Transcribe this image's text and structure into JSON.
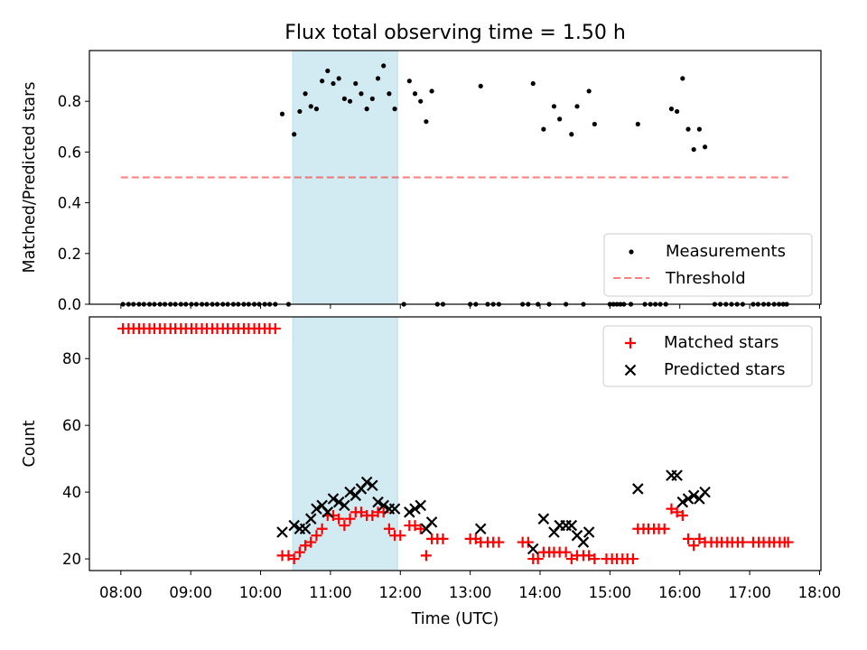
{
  "figure": {
    "title": "Flux total observing time = 1.50 h",
    "xlabel": "Time (UTC)",
    "x_ticks": [
      "08:00",
      "09:00",
      "10:00",
      "11:00",
      "12:00",
      "13:00",
      "14:00",
      "15:00",
      "16:00",
      "17:00",
      "18:00"
    ],
    "shaded_span_hours": [
      10.46,
      11.96
    ],
    "shade_color": "#add8e6"
  },
  "chart_data": [
    {
      "type": "scatter",
      "ylabel": "Matched/Predicted stars",
      "ylim": [
        0,
        1.0
      ],
      "yticks": [
        0.0,
        0.2,
        0.4,
        0.6,
        0.8
      ],
      "ytick_labels": [
        "0.0",
        "0.2",
        "0.4",
        "0.6",
        "0.8"
      ],
      "xlim_hours": [
        7.55,
        18.02
      ],
      "legend": {
        "placement": "lower right",
        "items": [
          "Measurements",
          "Threshold"
        ]
      },
      "threshold": {
        "name": "Threshold",
        "value": 0.5,
        "x_hours": [
          8.0,
          17.55
        ],
        "color": "#ff0000",
        "alpha": 0.5
      },
      "series": [
        {
          "name": "Measurements",
          "color": "#000000",
          "points": [
            [
              8.03,
              0
            ],
            [
              8.11,
              0
            ],
            [
              8.18,
              0
            ],
            [
              8.26,
              0
            ],
            [
              8.33,
              0
            ],
            [
              8.41,
              0
            ],
            [
              8.48,
              0
            ],
            [
              8.56,
              0
            ],
            [
              8.63,
              0
            ],
            [
              8.71,
              0
            ],
            [
              8.78,
              0
            ],
            [
              8.86,
              0
            ],
            [
              8.93,
              0
            ],
            [
              9.01,
              0
            ],
            [
              9.08,
              0
            ],
            [
              9.16,
              0
            ],
            [
              9.23,
              0
            ],
            [
              9.31,
              0
            ],
            [
              9.38,
              0
            ],
            [
              9.46,
              0
            ],
            [
              9.53,
              0
            ],
            [
              9.61,
              0
            ],
            [
              9.68,
              0
            ],
            [
              9.76,
              0
            ],
            [
              9.83,
              0
            ],
            [
              9.91,
              0
            ],
            [
              9.98,
              0
            ],
            [
              10.06,
              0
            ],
            [
              10.13,
              0
            ],
            [
              10.21,
              0
            ],
            [
              10.31,
              0.75
            ],
            [
              10.4,
              0
            ],
            [
              10.48,
              0.67
            ],
            [
              10.56,
              0.76
            ],
            [
              10.64,
              0.83
            ],
            [
              10.72,
              0.78
            ],
            [
              10.8,
              0.77
            ],
            [
              10.88,
              0.88
            ],
            [
              10.96,
              0.92
            ],
            [
              11.04,
              0.87
            ],
            [
              11.12,
              0.89
            ],
            [
              11.2,
              0.81
            ],
            [
              11.28,
              0.8
            ],
            [
              11.36,
              0.87
            ],
            [
              11.44,
              0.83
            ],
            [
              11.52,
              0.77
            ],
            [
              11.6,
              0.81
            ],
            [
              11.68,
              0.89
            ],
            [
              11.76,
              0.94
            ],
            [
              11.84,
              0.83
            ],
            [
              11.92,
              0.77
            ],
            [
              12.05,
              0
            ],
            [
              12.13,
              0.88
            ],
            [
              12.21,
              0.83
            ],
            [
              12.29,
              0.8
            ],
            [
              12.37,
              0.72
            ],
            [
              12.45,
              0.84
            ],
            [
              12.53,
              0
            ],
            [
              12.61,
              0
            ],
            [
              13.0,
              0
            ],
            [
              13.08,
              0
            ],
            [
              13.15,
              0.86
            ],
            [
              13.25,
              0
            ],
            [
              13.33,
              0
            ],
            [
              13.41,
              0
            ],
            [
              13.75,
              0
            ],
            [
              13.83,
              0
            ],
            [
              13.9,
              0.87
            ],
            [
              13.97,
              0
            ],
            [
              14.05,
              0.69
            ],
            [
              14.13,
              0
            ],
            [
              14.2,
              0.78
            ],
            [
              14.28,
              0.73
            ],
            [
              14.37,
              0
            ],
            [
              14.45,
              0.67
            ],
            [
              14.53,
              0.78
            ],
            [
              14.62,
              0
            ],
            [
              14.7,
              0.84
            ],
            [
              14.78,
              0.71
            ],
            [
              15.0,
              0
            ],
            [
              15.05,
              0
            ],
            [
              15.1,
              0
            ],
            [
              15.15,
              0
            ],
            [
              15.2,
              0
            ],
            [
              15.3,
              0
            ],
            [
              15.4,
              0.71
            ],
            [
              15.5,
              0
            ],
            [
              15.58,
              0
            ],
            [
              15.65,
              0
            ],
            [
              15.72,
              0
            ],
            [
              15.8,
              0
            ],
            [
              15.88,
              0.77
            ],
            [
              15.96,
              0.76
            ],
            [
              16.04,
              0.89
            ],
            [
              16.12,
              0.69
            ],
            [
              16.2,
              0.61
            ],
            [
              16.28,
              0.69
            ],
            [
              16.36,
              0.62
            ],
            [
              16.5,
              0
            ],
            [
              16.58,
              0
            ],
            [
              16.66,
              0
            ],
            [
              16.74,
              0
            ],
            [
              16.82,
              0
            ],
            [
              16.9,
              0
            ],
            [
              17.05,
              0
            ],
            [
              17.12,
              0
            ],
            [
              17.2,
              0
            ],
            [
              17.27,
              0
            ],
            [
              17.35,
              0
            ],
            [
              17.42,
              0
            ],
            [
              17.48,
              0
            ],
            [
              17.53,
              0
            ]
          ]
        }
      ]
    },
    {
      "type": "scatter",
      "ylabel": "Count",
      "ylim": [
        16.5,
        92.5
      ],
      "yticks": [
        20,
        40,
        60,
        80
      ],
      "ytick_labels": [
        "20",
        "40",
        "60",
        "80"
      ],
      "xlim_hours": [
        7.55,
        18.02
      ],
      "legend": {
        "placement": "upper right",
        "items": [
          "Matched stars",
          "Predicted stars"
        ]
      },
      "series": [
        {
          "name": "Matched stars",
          "color": "#ff0000",
          "marker": "plus",
          "points": [
            [
              8.03,
              89
            ],
            [
              8.11,
              89
            ],
            [
              8.18,
              89
            ],
            [
              8.26,
              89
            ],
            [
              8.33,
              89
            ],
            [
              8.41,
              89
            ],
            [
              8.48,
              89
            ],
            [
              8.56,
              89
            ],
            [
              8.63,
              89
            ],
            [
              8.71,
              89
            ],
            [
              8.78,
              89
            ],
            [
              8.86,
              89
            ],
            [
              8.93,
              89
            ],
            [
              9.01,
              89
            ],
            [
              9.08,
              89
            ],
            [
              9.16,
              89
            ],
            [
              9.23,
              89
            ],
            [
              9.31,
              89
            ],
            [
              9.38,
              89
            ],
            [
              9.46,
              89
            ],
            [
              9.53,
              89
            ],
            [
              9.61,
              89
            ],
            [
              9.68,
              89
            ],
            [
              9.76,
              89
            ],
            [
              9.83,
              89
            ],
            [
              9.91,
              89
            ],
            [
              9.98,
              89
            ],
            [
              10.06,
              89
            ],
            [
              10.13,
              89
            ],
            [
              10.21,
              89
            ],
            [
              10.31,
              21
            ],
            [
              10.4,
              21
            ],
            [
              10.48,
              20
            ],
            [
              10.56,
              22
            ],
            [
              10.64,
              24
            ],
            [
              10.72,
              25
            ],
            [
              10.8,
              27
            ],
            [
              10.88,
              29
            ],
            [
              10.96,
              33
            ],
            [
              11.04,
              33
            ],
            [
              11.12,
              32
            ],
            [
              11.2,
              30
            ],
            [
              11.28,
              32
            ],
            [
              11.36,
              34
            ],
            [
              11.44,
              34
            ],
            [
              11.52,
              33
            ],
            [
              11.6,
              33
            ],
            [
              11.68,
              34
            ],
            [
              11.76,
              34
            ],
            [
              11.84,
              29
            ],
            [
              11.92,
              27
            ],
            [
              12.0,
              27
            ],
            [
              12.13,
              30
            ],
            [
              12.21,
              30
            ],
            [
              12.29,
              29
            ],
            [
              12.37,
              21
            ],
            [
              12.45,
              26
            ],
            [
              12.53,
              26
            ],
            [
              12.61,
              26
            ],
            [
              13.0,
              26
            ],
            [
              13.08,
              26
            ],
            [
              13.15,
              25
            ],
            [
              13.25,
              25
            ],
            [
              13.33,
              25
            ],
            [
              13.41,
              25
            ],
            [
              13.75,
              25
            ],
            [
              13.83,
              25
            ],
            [
              13.9,
              20
            ],
            [
              13.97,
              20
            ],
            [
              14.05,
              22
            ],
            [
              14.13,
              22
            ],
            [
              14.2,
              22
            ],
            [
              14.28,
              22
            ],
            [
              14.37,
              22
            ],
            [
              14.45,
              20
            ],
            [
              14.53,
              21
            ],
            [
              14.62,
              21
            ],
            [
              14.7,
              21
            ],
            [
              14.78,
              20
            ],
            [
              14.95,
              20
            ],
            [
              15.03,
              20
            ],
            [
              15.1,
              20
            ],
            [
              15.18,
              20
            ],
            [
              15.25,
              20
            ],
            [
              15.33,
              20
            ],
            [
              15.4,
              29
            ],
            [
              15.48,
              29
            ],
            [
              15.55,
              29
            ],
            [
              15.63,
              29
            ],
            [
              15.7,
              29
            ],
            [
              15.78,
              29
            ],
            [
              15.88,
              35
            ],
            [
              15.96,
              34
            ],
            [
              16.04,
              33
            ],
            [
              16.12,
              26
            ],
            [
              16.2,
              24
            ],
            [
              16.28,
              26
            ],
            [
              16.36,
              25
            ],
            [
              16.45,
              25
            ],
            [
              16.53,
              25
            ],
            [
              16.6,
              25
            ],
            [
              16.68,
              25
            ],
            [
              16.75,
              25
            ],
            [
              16.83,
              25
            ],
            [
              16.9,
              25
            ],
            [
              17.05,
              25
            ],
            [
              17.13,
              25
            ],
            [
              17.2,
              25
            ],
            [
              17.28,
              25
            ],
            [
              17.35,
              25
            ],
            [
              17.43,
              25
            ],
            [
              17.5,
              25
            ],
            [
              17.55,
              25
            ]
          ]
        },
        {
          "name": "Predicted stars",
          "color": "#000000",
          "marker": "x",
          "points": [
            [
              10.31,
              28
            ],
            [
              10.48,
              30
            ],
            [
              10.56,
              29
            ],
            [
              10.64,
              29
            ],
            [
              10.72,
              32
            ],
            [
              10.8,
              35
            ],
            [
              10.88,
              36
            ],
            [
              10.96,
              34
            ],
            [
              11.04,
              38
            ],
            [
              11.12,
              37
            ],
            [
              11.2,
              36
            ],
            [
              11.28,
              40
            ],
            [
              11.36,
              39
            ],
            [
              11.44,
              41
            ],
            [
              11.52,
              43
            ],
            [
              11.6,
              42
            ],
            [
              11.68,
              37
            ],
            [
              11.76,
              36
            ],
            [
              11.84,
              35
            ],
            [
              11.92,
              35
            ],
            [
              12.13,
              34
            ],
            [
              12.21,
              35
            ],
            [
              12.29,
              36
            ],
            [
              12.37,
              29
            ],
            [
              12.45,
              31
            ],
            [
              13.15,
              29
            ],
            [
              13.9,
              23
            ],
            [
              14.05,
              32
            ],
            [
              14.2,
              28
            ],
            [
              14.28,
              30
            ],
            [
              14.37,
              30
            ],
            [
              14.45,
              30
            ],
            [
              14.53,
              27
            ],
            [
              14.62,
              25
            ],
            [
              14.7,
              28
            ],
            [
              15.4,
              41
            ],
            [
              15.88,
              45
            ],
            [
              15.96,
              45
            ],
            [
              16.04,
              37
            ],
            [
              16.12,
              38
            ],
            [
              16.2,
              39
            ],
            [
              16.28,
              38
            ],
            [
              16.36,
              40
            ]
          ]
        }
      ]
    }
  ]
}
